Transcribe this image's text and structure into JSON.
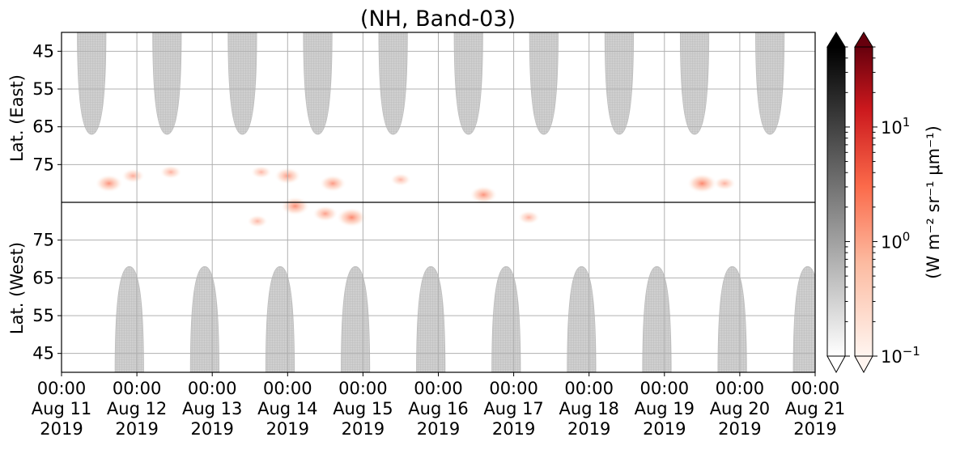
{
  "chart_data": {
    "type": "heatmap",
    "title": "(NH, Band-03)",
    "x_tick_labels": [
      [
        "00:00",
        "Aug 11",
        "2019"
      ],
      [
        "00:00",
        "Aug 12",
        "2019"
      ],
      [
        "00:00",
        "Aug 13",
        "2019"
      ],
      [
        "00:00",
        "Aug 14",
        "2019"
      ],
      [
        "00:00",
        "Aug 15",
        "2019"
      ],
      [
        "00:00",
        "Aug 16",
        "2019"
      ],
      [
        "00:00",
        "Aug 17",
        "2019"
      ],
      [
        "00:00",
        "Aug 18",
        "2019"
      ],
      [
        "00:00",
        "Aug 19",
        "2019"
      ],
      [
        "00:00",
        "Aug 20",
        "2019"
      ],
      [
        "00:00",
        "Aug 21",
        "2019"
      ]
    ],
    "x_range": [
      "2019-08-11 00:00",
      "2019-08-21 00:00"
    ],
    "panels": [
      {
        "ylabel": "Lat. (East)",
        "y_ticks": [
          45,
          55,
          65,
          75
        ],
        "ylim": [
          40,
          85
        ],
        "orientation": "pole-at-bottom"
      },
      {
        "ylabel": "Lat. (West)",
        "y_ticks": [
          75,
          65,
          55,
          45
        ],
        "ylim": [
          40,
          85
        ],
        "orientation": "pole-at-top"
      }
    ],
    "grid": true,
    "sun_masks": {
      "description_color": "#c8c8c8",
      "east_day_centers": [
        0.4,
        1.4,
        2.4,
        3.4,
        4.4,
        5.4,
        6.4,
        7.4,
        8.4,
        9.4
      ],
      "east_min_lat": 67,
      "west_day_centers": [
        0.9,
        1.9,
        2.9,
        3.9,
        4.9,
        5.9,
        6.9,
        7.9,
        8.9,
        9.9
      ],
      "west_max_lat": 68
    },
    "red_events": [
      {
        "day": 0.63,
        "lat": 80,
        "panel": "east",
        "intensity": 0.5
      },
      {
        "day": 0.95,
        "lat": 78,
        "panel": "east",
        "intensity": 0.3
      },
      {
        "day": 1.45,
        "lat": 77,
        "panel": "east",
        "intensity": 0.25
      },
      {
        "day": 2.65,
        "lat": 77,
        "panel": "east",
        "intensity": 0.2
      },
      {
        "day": 2.6,
        "lat": 80,
        "panel": "west",
        "intensity": 0.2
      },
      {
        "day": 3.0,
        "lat": 78,
        "panel": "east",
        "intensity": 0.45
      },
      {
        "day": 3.1,
        "lat": 84,
        "panel": "west",
        "intensity": 0.55
      },
      {
        "day": 3.5,
        "lat": 82,
        "panel": "west",
        "intensity": 0.4
      },
      {
        "day": 3.6,
        "lat": 80,
        "panel": "east",
        "intensity": 0.45
      },
      {
        "day": 3.85,
        "lat": 81,
        "panel": "west",
        "intensity": 0.6
      },
      {
        "day": 4.5,
        "lat": 79,
        "panel": "east",
        "intensity": 0.2
      },
      {
        "day": 5.6,
        "lat": 83,
        "panel": "east",
        "intensity": 0.5
      },
      {
        "day": 6.2,
        "lat": 81,
        "panel": "west",
        "intensity": 0.25
      },
      {
        "day": 8.5,
        "lat": 80,
        "panel": "east",
        "intensity": 0.6
      },
      {
        "day": 8.8,
        "lat": 80,
        "panel": "east",
        "intensity": 0.25
      }
    ],
    "colorbars": [
      {
        "name": "gray",
        "colors": [
          "#ffffff",
          "#000000"
        ],
        "extend": "both"
      },
      {
        "name": "reds",
        "colors": [
          "#fff5f0",
          "#67000d"
        ],
        "extend": "both",
        "scale": "log",
        "range": [
          0.1,
          50
        ],
        "tick_labels": [
          [
            "10",
            "−1"
          ],
          [
            "10",
            "0"
          ],
          [
            "10",
            "1"
          ]
        ],
        "tick_values": [
          0.1,
          1,
          10
        ],
        "label": "(W m⁻² sr⁻¹ μm⁻¹)"
      }
    ]
  }
}
